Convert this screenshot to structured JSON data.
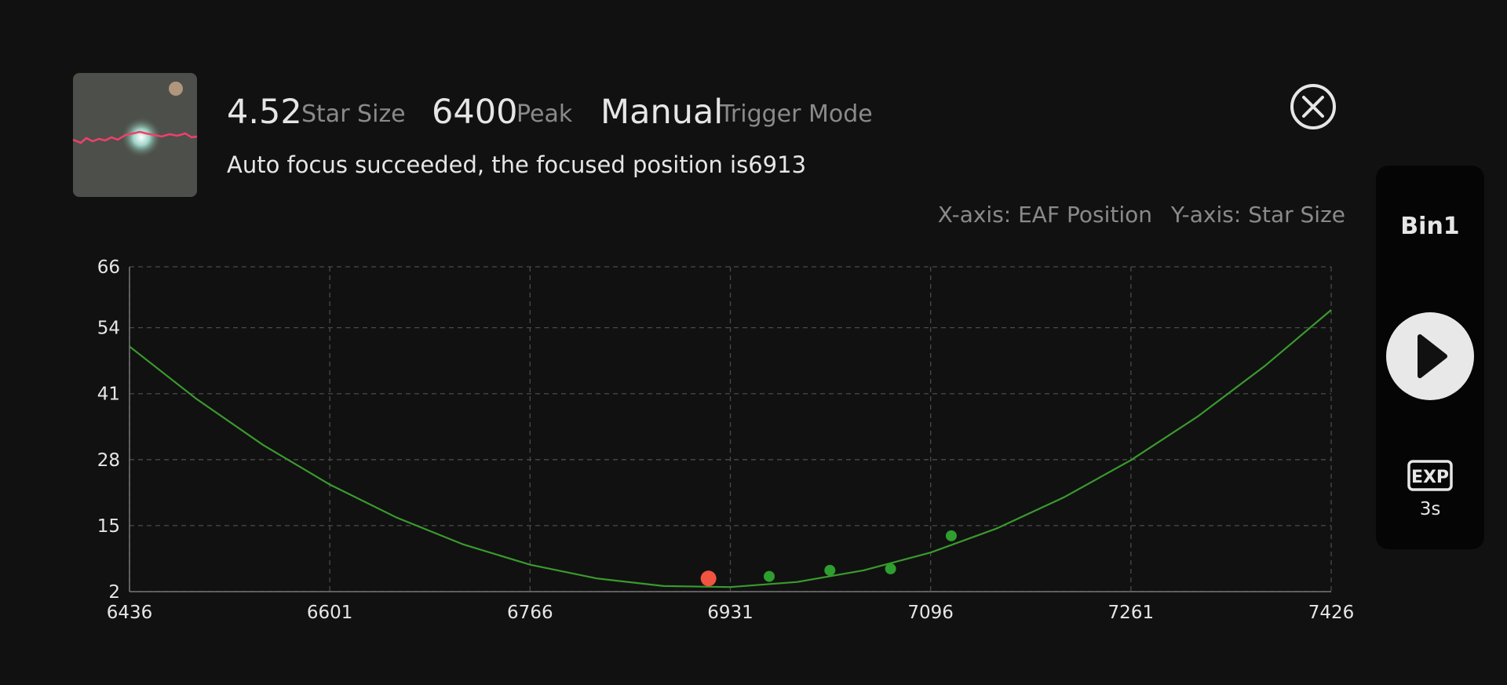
{
  "header": {
    "star_size_value": 4.52,
    "star_size_label": "Star Size",
    "peak_value": 6400,
    "peak_label": "Peak",
    "trigger_value": "Manual",
    "trigger_label": "Trigger Mode",
    "message": "Auto focus succeeded, the focused position is6913"
  },
  "side_panel": {
    "bin": "Bin1",
    "exp_label": "EXP",
    "exp_value": "3s"
  },
  "chart_data": {
    "type": "scatter",
    "x_label": "X-axis: EAF Position",
    "y_label": "Y-axis: Star Size",
    "xlim": [
      6436,
      7426
    ],
    "xticks": [
      6436,
      6601,
      6766,
      6931,
      7096,
      7261,
      7426
    ],
    "ylim": [
      2,
      66
    ],
    "yticks": [
      2,
      15,
      28,
      41,
      54,
      66
    ],
    "grid": true,
    "series": [
      {
        "kind": "line",
        "color": "#3a9a2e",
        "x": [
          6436,
          6491,
          6546,
          6601,
          6656,
          6711,
          6766,
          6821,
          6876,
          6931,
          6986,
          7041,
          7096,
          7151,
          7206,
          7261,
          7316,
          7371,
          7426
        ],
        "values": [
          50.3,
          40.0,
          30.9,
          23.1,
          16.6,
          11.3,
          7.3,
          4.6,
          3.1,
          2.9,
          3.9,
          6.2,
          9.7,
          14.5,
          20.6,
          27.9,
          36.5,
          46.4,
          57.5
        ]
      },
      {
        "kind": "points",
        "color": "#2e9e2e",
        "x": [
          6963,
          7013,
          7063,
          7113
        ],
        "values": [
          5.0,
          6.2,
          6.5,
          13.0
        ]
      },
      {
        "kind": "points",
        "color": "#f0533f",
        "x": [
          6913
        ],
        "values": [
          4.6
        ]
      }
    ]
  }
}
